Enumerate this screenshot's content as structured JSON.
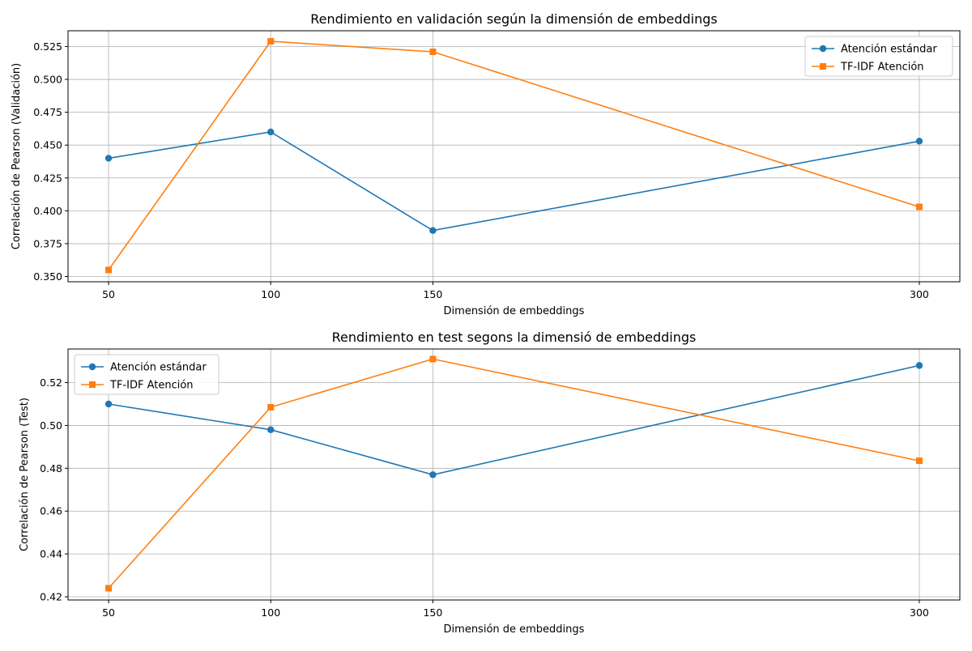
{
  "chart_data": [
    {
      "type": "line",
      "title": "Rendimiento en validación según la dimensión de embeddings",
      "xlabel": "Dimensión de embeddings",
      "ylabel": "Correlación de Pearson (Validación)",
      "x": [
        50,
        100,
        150,
        300
      ],
      "xticks": [
        "50",
        "100",
        "150",
        "300"
      ],
      "xlim": [
        37.5,
        312.5
      ],
      "ylim": [
        0.346,
        0.537
      ],
      "yticks": [
        0.35,
        0.375,
        0.4,
        0.425,
        0.45,
        0.475,
        0.5,
        0.525
      ],
      "ytick_labels": [
        "0.350",
        "0.375",
        "0.400",
        "0.425",
        "0.450",
        "0.475",
        "0.500",
        "0.525"
      ],
      "grid": true,
      "legend_position": "top-right",
      "series": [
        {
          "name": "Atención estándar",
          "color": "#1f77b4",
          "marker": "circle",
          "values": [
            0.44,
            0.46,
            0.385,
            0.453
          ]
        },
        {
          "name": "TF-IDF Atención",
          "color": "#ff7f0e",
          "marker": "square",
          "values": [
            0.355,
            0.529,
            0.521,
            0.403
          ]
        }
      ]
    },
    {
      "type": "line",
      "title": "Rendimiento en test segons la dimensió de embeddings",
      "xlabel": "Dimensión de embeddings",
      "ylabel": "Correlación de Pearson (Test)",
      "x": [
        50,
        100,
        150,
        300
      ],
      "xticks": [
        "50",
        "100",
        "150",
        "300"
      ],
      "xlim": [
        37.5,
        312.5
      ],
      "ylim": [
        0.4185,
        0.5357
      ],
      "yticks": [
        0.42,
        0.44,
        0.46,
        0.48,
        0.5,
        0.52
      ],
      "ytick_labels": [
        "0.42",
        "0.44",
        "0.46",
        "0.48",
        "0.50",
        "0.52"
      ],
      "grid": true,
      "legend_position": "top-left",
      "series": [
        {
          "name": "Atención estándar",
          "color": "#1f77b4",
          "marker": "circle",
          "values": [
            0.51,
            0.498,
            0.477,
            0.528
          ]
        },
        {
          "name": "TF-IDF Atención",
          "color": "#ff7f0e",
          "marker": "square",
          "values": [
            0.424,
            0.5085,
            0.531,
            0.4835
          ]
        }
      ]
    }
  ]
}
